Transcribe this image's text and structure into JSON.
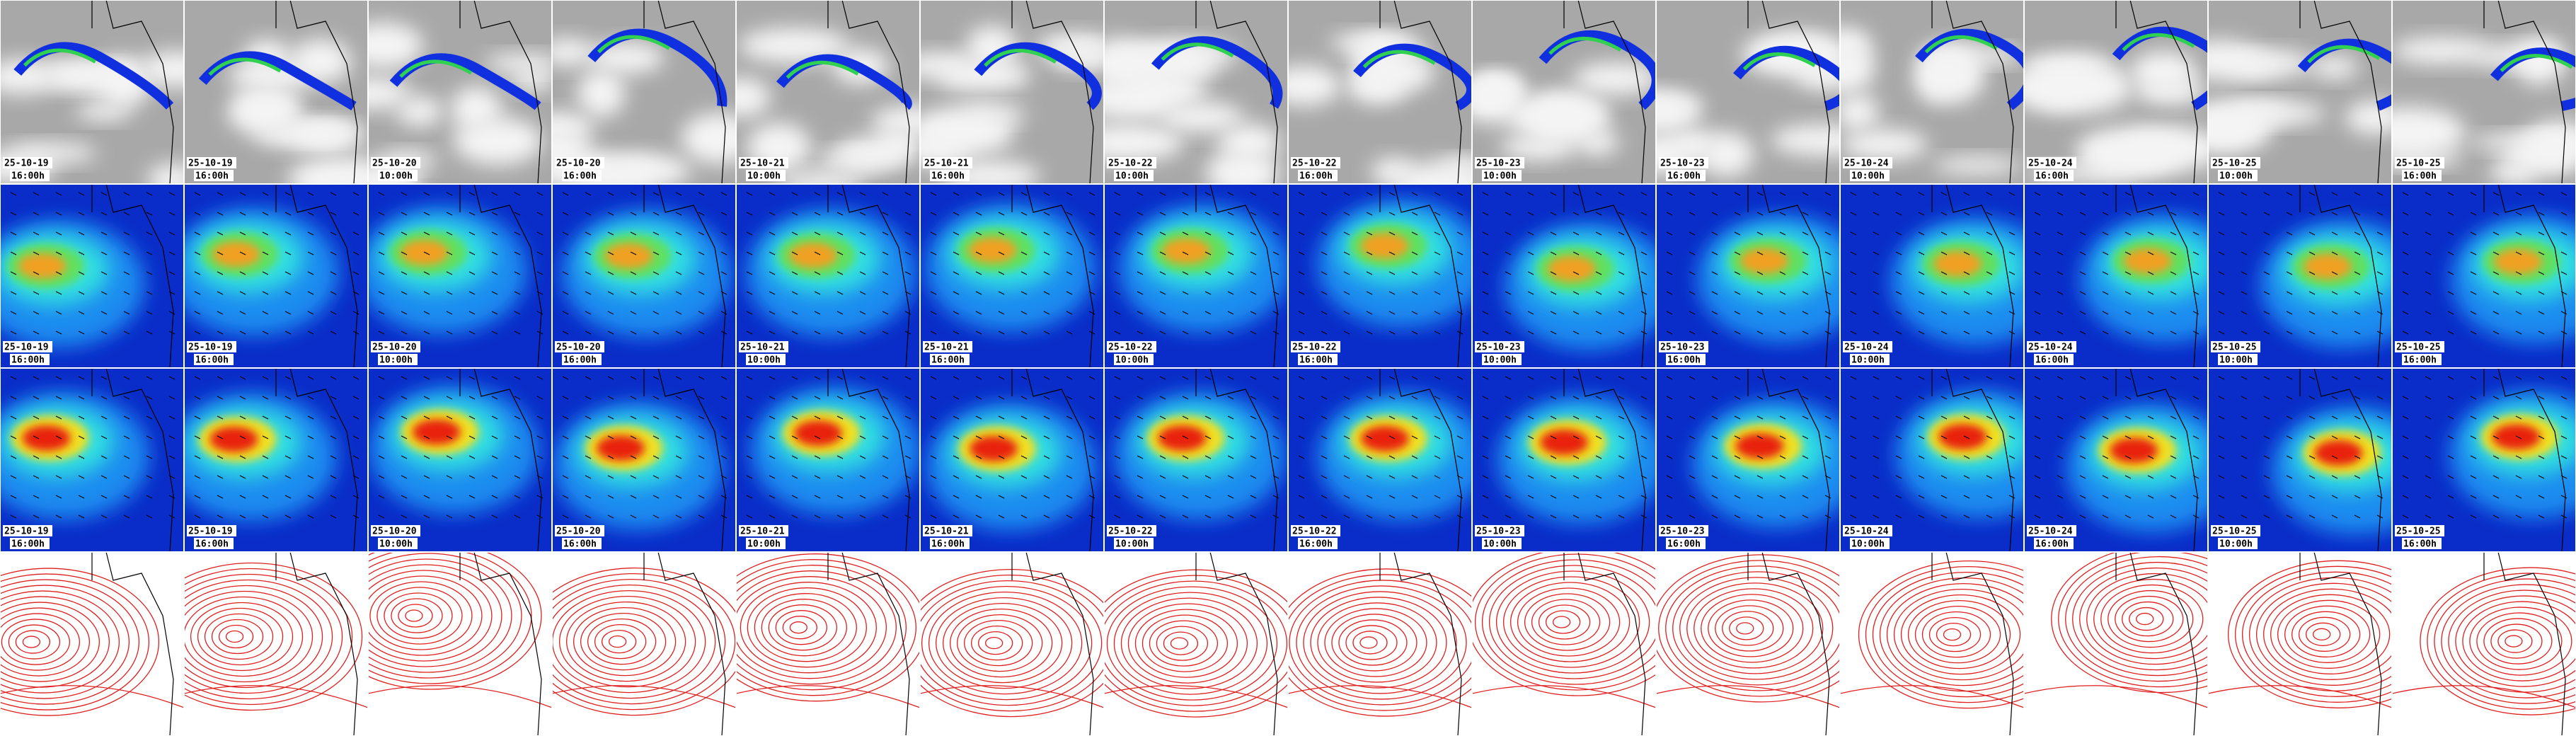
{
  "frames": [
    {
      "date": "25-10-19",
      "time": "16:00h"
    },
    {
      "date": "25-10-19",
      "time": "16:00h"
    },
    {
      "date": "25-10-20",
      "time": "10:00h"
    },
    {
      "date": "25-10-20",
      "time": "16:00h"
    },
    {
      "date": "25-10-21",
      "time": "10:00h"
    },
    {
      "date": "25-10-21",
      "time": "16:00h"
    },
    {
      "date": "25-10-22",
      "time": "10:00h"
    },
    {
      "date": "25-10-22",
      "time": "16:00h"
    },
    {
      "date": "25-10-23",
      "time": "10:00h"
    },
    {
      "date": "25-10-23",
      "time": "16:00h"
    },
    {
      "date": "25-10-24",
      "time": "10:00h"
    },
    {
      "date": "25-10-24",
      "time": "16:00h"
    },
    {
      "date": "25-10-25",
      "time": "10:00h"
    },
    {
      "date": "25-10-25",
      "time": "16:00h"
    }
  ]
}
